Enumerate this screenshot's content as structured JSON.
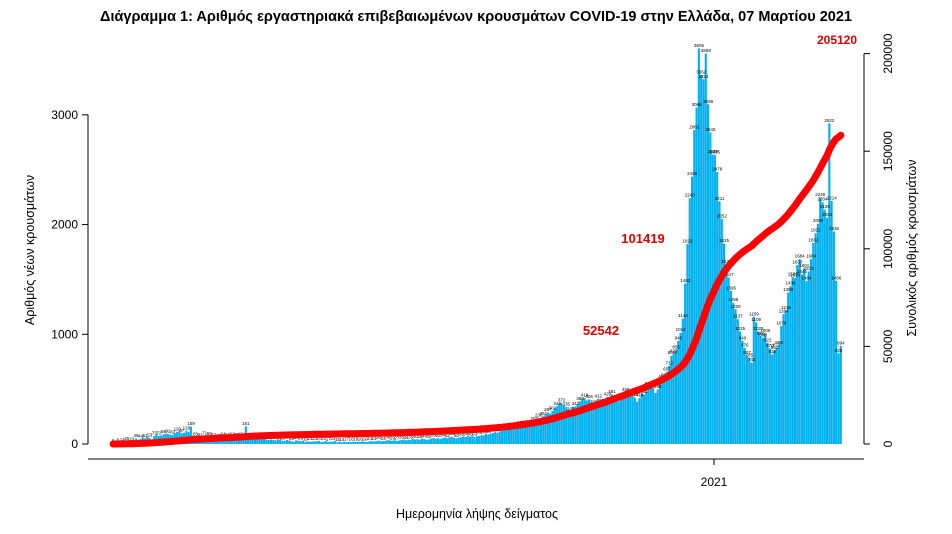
{
  "chart_data": {
    "type": "bar",
    "title": "Διάγραμμα 1: Αριθμός εργαστηριακά επιβεβαιωμένων κρουσμάτων COVID-19 στην Ελλάδα, 07 Μαρτίου 2021",
    "xlabel": "Ημερομηνία λήψης δείγματος",
    "ylabel": "Αριθμός νέων κρουσμάτων",
    "y2label": "Συνολικός αριθμός κρουσμάτων",
    "x_tick_labels": [
      "2021"
    ],
    "y_ticks": [
      0,
      1000,
      2000,
      3000
    ],
    "y2_ticks": [
      0,
      50000,
      100000,
      150000,
      200000
    ],
    "ylim": [
      0,
      3700
    ],
    "y2lim": [
      0,
      208000
    ],
    "grid": false,
    "colors": {
      "bars": "#00b0f0",
      "cumulative": "#ff0000",
      "annotation": "#e00000"
    },
    "series": [
      {
        "name": "daily",
        "style": "bars",
        "values": [
          6,
          5,
          8,
          10,
          14,
          22,
          25,
          27,
          19,
          36,
          49,
          40,
          44,
          60,
          51,
          67,
          53,
          41,
          73,
          87,
          72,
          77,
          88,
          95,
          92,
          84,
          82,
          98,
          110,
          117,
          97,
          102,
          120,
          109,
          159,
          77,
          65,
          56,
          61,
          74,
          71,
          59,
          69,
          64,
          57,
          62,
          48,
          51,
          64,
          58,
          55,
          47,
          62,
          61,
          59,
          70,
          66,
          82,
          161,
          72,
          56,
          49,
          61,
          48,
          42,
          45,
          51,
          40,
          37,
          41,
          36,
          33,
          44,
          39,
          29,
          28,
          37,
          32,
          25,
          21,
          34,
          29,
          26,
          27,
          19,
          24,
          21,
          22,
          23,
          25,
          28,
          18,
          21,
          26,
          17,
          20,
          23,
          26,
          15,
          21,
          14,
          20,
          17,
          18,
          16,
          22,
          19,
          21,
          18,
          24,
          20,
          17,
          24,
          26,
          23,
          26,
          30,
          25,
          24,
          28,
          36,
          32,
          29,
          34,
          27,
          31,
          36,
          40,
          34,
          38,
          35,
          46,
          40,
          44,
          39,
          50,
          44,
          37,
          42,
          49,
          55,
          48,
          52,
          46,
          54,
          59,
          52,
          61,
          68,
          55,
          50,
          58,
          62,
          69,
          64,
          72,
          66,
          75,
          63,
          70,
          74,
          81,
          80,
          92,
          86,
          95,
          101,
          108,
          103,
          115,
          121,
          128,
          132,
          144,
          137,
          139,
          155,
          160,
          168,
          159,
          171,
          184,
          178,
          195,
          207,
          220,
          236,
          228,
          251,
          269,
          287,
          276,
          301,
          325,
          344,
          371,
          372,
          350,
          335,
          314,
          293,
          338,
          342,
          363,
          389,
          410,
          418,
          397,
          406,
          380,
          356,
          394,
          412,
          398,
          369,
          407,
          429,
          424,
          451,
          433,
          401,
          387,
          422,
          471,
          468,
          430,
          457,
          484,
          424,
          386,
          418,
          462,
          451,
          480,
          523,
          566,
          510,
          465,
          498,
          548,
          582,
          603,
          657,
          712,
          805,
          822,
          855,
          940,
          1014,
          1144,
          1462,
          1822,
          2240,
          2436,
          2862,
          3066,
          3605,
          3362,
          3324,
          3558,
          3096,
          2840,
          2638,
          2635,
          2478,
          2211,
          2052,
          1825,
          1634,
          1517,
          1395,
          1288,
          1228,
          1137,
          1025,
          940,
          876,
          807,
          785,
          742,
          1159,
          1109,
          1025,
          980,
          968,
          1006,
          922,
          870,
          815,
          852,
          874,
          898,
          1076,
          1184,
          1215,
          1380,
          1438,
          1520,
          1514,
          1630,
          1684,
          1546,
          1601,
          1484,
          1572,
          1684,
          1832,
          1921,
          2008,
          2246,
          2204,
          2135,
          2062,
          2922,
          2214,
          1936,
          1486,
          826,
          894
        ],
        "value_labels_note": "tiny per-bar value labels printed above bars"
      },
      {
        "name": "cumulative",
        "style": "line",
        "axis": "right",
        "annotated_values": [
          "52542",
          "101419",
          "205120"
        ]
      }
    ],
    "annotations": [
      {
        "text": "52542"
      },
      {
        "text": "101419"
      },
      {
        "text": "205120"
      }
    ]
  }
}
